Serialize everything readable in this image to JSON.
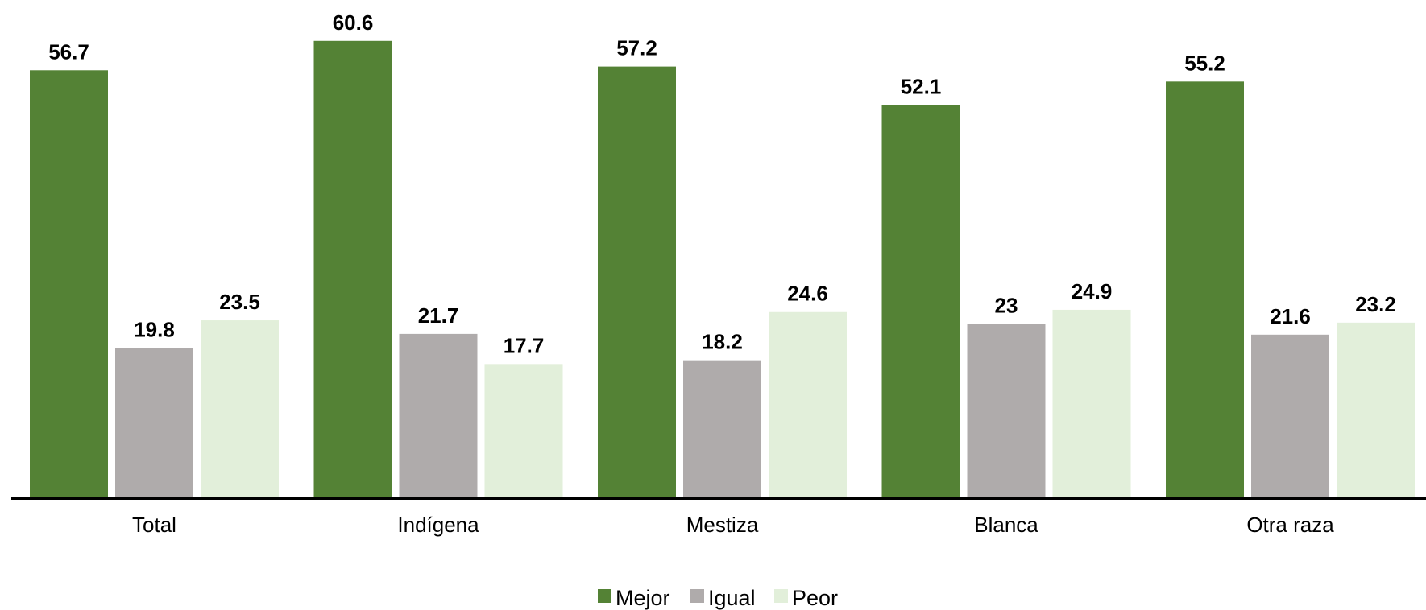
{
  "chart_data": {
    "type": "bar",
    "categories": [
      "Total",
      "Indígena",
      "Mestiza",
      "Blanca",
      "Otra raza"
    ],
    "series": [
      {
        "name": "Mejor",
        "values": [
          56.7,
          60.6,
          57.2,
          52.1,
          55.2
        ],
        "labels": [
          "56.7",
          "60.6",
          "57.2",
          "52.1",
          "55.2"
        ],
        "color": "#548235"
      },
      {
        "name": "Igual",
        "values": [
          19.8,
          21.7,
          18.2,
          23,
          21.6
        ],
        "labels": [
          "19.8",
          "21.7",
          "18.2",
          "23",
          "21.6"
        ],
        "color": "#afabab"
      },
      {
        "name": "Peor",
        "values": [
          23.5,
          17.7,
          24.6,
          24.9,
          23.2
        ],
        "labels": [
          "23.5",
          "17.7",
          "24.6",
          "24.9",
          "23.2"
        ],
        "color": "#e2efda"
      }
    ],
    "ylim": [
      0,
      65
    ],
    "grid": false,
    "legend": "bottom-center",
    "axis_color": "#000000"
  }
}
